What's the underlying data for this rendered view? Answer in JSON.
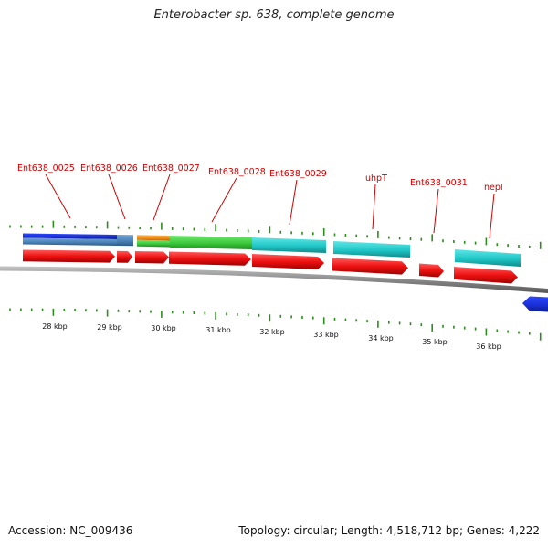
{
  "title": "Enterobacter sp. 638, complete genome",
  "footer": {
    "accession": "Accession: NC_009436",
    "topology": "Topology: circular; Length: 4,518,712 bp; Genes: 4,222"
  },
  "colors": {
    "cds": "#ee1111",
    "backbone": "#8a8a8a",
    "ticks": "#2e8b1e",
    "label": "#cc0000",
    "blue": "#1a2fd6",
    "steel": "#4a82b8",
    "orange": "#f0901a",
    "green": "#3cc83c",
    "cyan": "#1fc6c6"
  },
  "scale": {
    "unit": "kbp",
    "labels": [
      "28 kbp",
      "29 kbp",
      "30 kbp",
      "31 kbp",
      "32 kbp",
      "33 kbp",
      "34 kbp",
      "35 kbp",
      "36 kbp"
    ]
  },
  "genes": [
    {
      "name": "Ent638_0025",
      "label": "Ent638_0025"
    },
    {
      "name": "Ent638_0026",
      "label": "Ent638_0026"
    },
    {
      "name": "Ent638_0027",
      "label": "Ent638_0027"
    },
    {
      "name": "Ent638_0028",
      "label": "Ent638_0028"
    },
    {
      "name": "Ent638_0029",
      "label": "Ent638_0029"
    },
    {
      "name": "uhpT",
      "label": "uhpT"
    },
    {
      "name": "Ent638_0031",
      "label": "Ent638_0031"
    },
    {
      "name": "nepI",
      "label": "nepI"
    }
  ]
}
